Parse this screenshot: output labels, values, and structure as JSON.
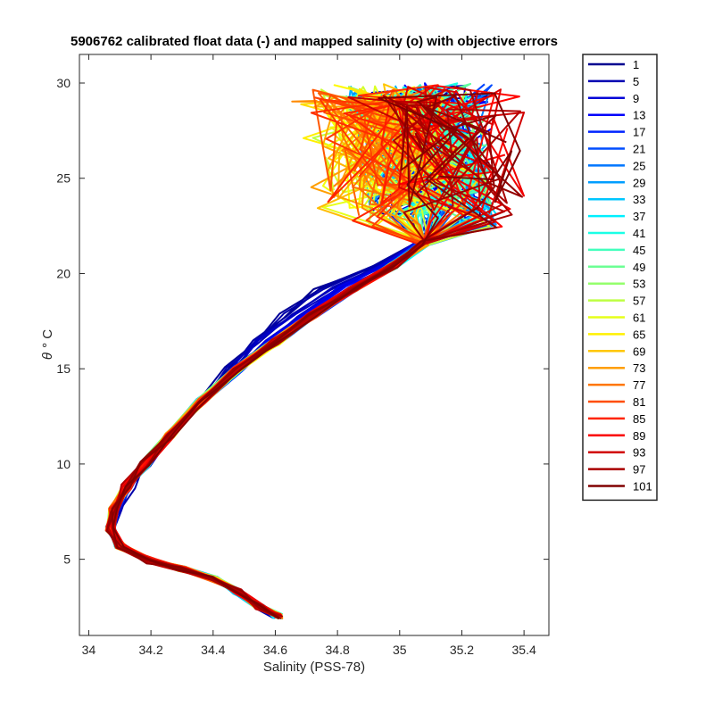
{
  "chart_data": {
    "type": "line",
    "title": "5906762 calibrated float data (-) and mapped salinity (o) with objective errors",
    "xlabel": "Salinity (PSS-78)",
    "ylabel_symbol": "θ",
    "ylabel_unit": "° C",
    "xlim": [
      33.97,
      35.48
    ],
    "ylim": [
      1.0,
      31.5
    ],
    "xticks": [
      34,
      34.2,
      34.4,
      34.6,
      34.8,
      35,
      35.2,
      35.4
    ],
    "xtick_labels": [
      "34",
      "34.2",
      "34.4",
      "34.6",
      "34.8",
      "35",
      "35.2",
      "35.4"
    ],
    "yticks": [
      5,
      10,
      15,
      20,
      25,
      30
    ],
    "ytick_labels": [
      "5",
      "10",
      "15",
      "20",
      "25",
      "30"
    ],
    "legend_position": "outside-right",
    "colormap": "jet",
    "colormap_stops": [
      "#00008f",
      "#0000ff",
      "#0080ff",
      "#00ffff",
      "#80ff80",
      "#ffff00",
      "#ff8000",
      "#ff0000",
      "#800000"
    ],
    "series": [
      {
        "name": "1"
      },
      {
        "name": "5"
      },
      {
        "name": "9"
      },
      {
        "name": "13"
      },
      {
        "name": "17"
      },
      {
        "name": "21"
      },
      {
        "name": "25"
      },
      {
        "name": "29"
      },
      {
        "name": "33"
      },
      {
        "name": "37"
      },
      {
        "name": "41"
      },
      {
        "name": "45"
      },
      {
        "name": "49"
      },
      {
        "name": "53"
      },
      {
        "name": "57"
      },
      {
        "name": "61"
      },
      {
        "name": "65"
      },
      {
        "name": "69"
      },
      {
        "name": "73"
      },
      {
        "name": "77"
      },
      {
        "name": "81"
      },
      {
        "name": "85"
      },
      {
        "name": "89"
      },
      {
        "name": "93"
      },
      {
        "name": "97"
      },
      {
        "name": "101"
      }
    ],
    "typical_profile_sal_theta": [
      [
        34.61,
        2.0
      ],
      [
        34.55,
        2.5
      ],
      [
        34.48,
        3.3
      ],
      [
        34.4,
        4.0
      ],
      [
        34.3,
        4.5
      ],
      [
        34.2,
        4.9
      ],
      [
        34.1,
        5.7
      ],
      [
        34.07,
        6.6
      ],
      [
        34.08,
        7.6
      ],
      [
        34.12,
        8.8
      ],
      [
        34.18,
        10.0
      ],
      [
        34.26,
        11.5
      ],
      [
        34.36,
        13.3
      ],
      [
        34.48,
        15.0
      ],
      [
        34.6,
        16.4
      ],
      [
        34.72,
        17.8
      ],
      [
        34.85,
        19.2
      ],
      [
        34.98,
        20.4
      ],
      [
        35.08,
        21.6
      ],
      [
        35.14,
        23.0
      ],
      [
        35.12,
        25.0
      ],
      [
        35.08,
        27.0
      ],
      [
        35.0,
        28.7
      ],
      [
        35.0,
        29.3
      ]
    ],
    "blue_profile_sal_theta": [
      [
        34.1,
        6.8
      ],
      [
        34.12,
        8.2
      ],
      [
        34.2,
        10.2
      ],
      [
        34.3,
        12.0
      ],
      [
        34.42,
        14.6
      ],
      [
        34.55,
        17.2
      ],
      [
        34.68,
        19.0
      ],
      [
        34.82,
        20.0
      ],
      [
        34.98,
        21.0
      ],
      [
        35.1,
        22.3
      ],
      [
        35.2,
        24.0
      ],
      [
        35.23,
        26.5
      ],
      [
        35.18,
        28.5
      ]
    ]
  }
}
